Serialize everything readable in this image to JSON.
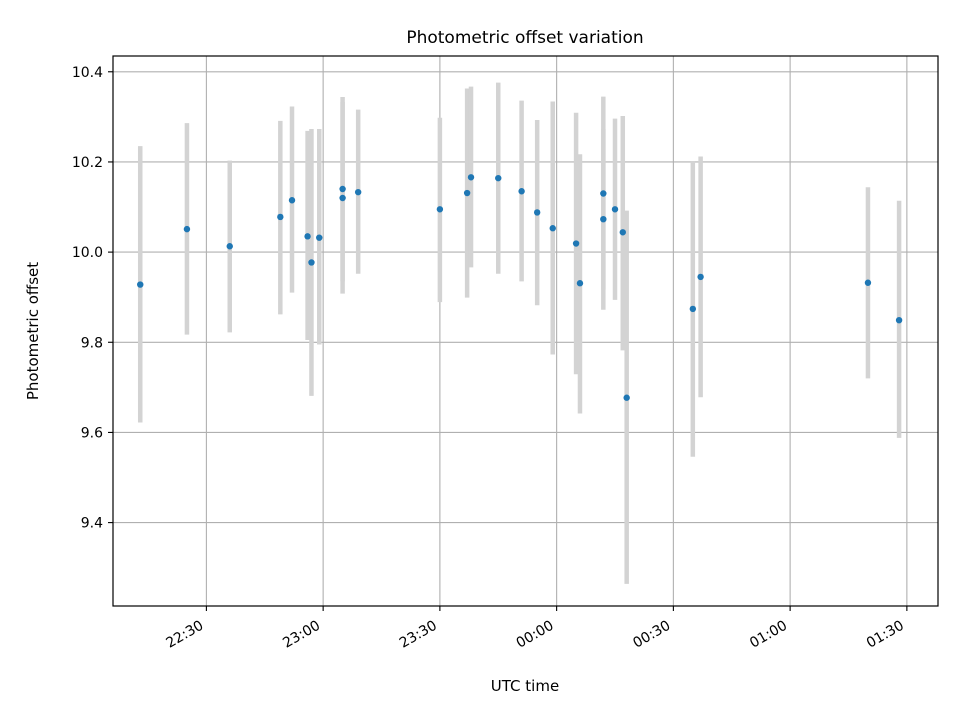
{
  "chart_data": {
    "type": "scatter",
    "title": "Photometric offset variation",
    "xlabel": "UTC time",
    "ylabel": "Photometric offset",
    "x_ticks": [
      {
        "time": "22:30",
        "label": "22:30"
      },
      {
        "time": "23:00",
        "label": "23:00"
      },
      {
        "time": "23:30",
        "label": "23:30"
      },
      {
        "time": "00:00",
        "label": "00:00"
      },
      {
        "time": "00:30",
        "label": "00:30"
      },
      {
        "time": "01:00",
        "label": "01:00"
      },
      {
        "time": "01:30",
        "label": "01:30"
      }
    ],
    "x_range": [
      "22:06",
      "01:38"
    ],
    "y_ticks": [
      {
        "value": 9.4,
        "label": "9.4"
      },
      {
        "value": 9.6,
        "label": "9.6"
      },
      {
        "value": 9.8,
        "label": "9.8"
      },
      {
        "value": 10.0,
        "label": "10.0"
      },
      {
        "value": 10.2,
        "label": "10.2"
      },
      {
        "value": 10.4,
        "label": "10.4"
      }
    ],
    "ylim": [
      9.215,
      10.435
    ],
    "grid": true,
    "marker_color": "#1f77b4",
    "errorbar_color": "#d3d3d3",
    "points": [
      {
        "time": "22:13",
        "y": 9.928,
        "err_low": 9.622,
        "err_high": 10.235
      },
      {
        "time": "22:25",
        "y": 10.051,
        "err_low": 9.817,
        "err_high": 10.286
      },
      {
        "time": "22:36",
        "y": 10.013,
        "err_low": 9.822,
        "err_high": 10.203
      },
      {
        "time": "22:49",
        "y": 10.078,
        "err_low": 9.862,
        "err_high": 10.291
      },
      {
        "time": "22:52",
        "y": 10.115,
        "err_low": 9.91,
        "err_high": 10.323
      },
      {
        "time": "22:56",
        "y": 10.035,
        "err_low": 9.805,
        "err_high": 10.269
      },
      {
        "time": "22:57",
        "y": 9.977,
        "err_low": 9.681,
        "err_high": 10.273
      },
      {
        "time": "22:59",
        "y": 10.032,
        "err_low": 9.795,
        "err_high": 10.273
      },
      {
        "time": "23:05",
        "y": 10.14,
        "err_low": 9.935,
        "err_high": 10.344
      },
      {
        "time": "23:05",
        "y": 10.12,
        "err_low": 9.908,
        "err_high": 10.333
      },
      {
        "time": "23:09",
        "y": 10.133,
        "err_low": 9.952,
        "err_high": 10.316
      },
      {
        "time": "23:30",
        "y": 10.095,
        "err_low": 9.889,
        "err_high": 10.298
      },
      {
        "time": "23:37",
        "y": 10.131,
        "err_low": 9.899,
        "err_high": 10.363
      },
      {
        "time": "23:38",
        "y": 10.166,
        "err_low": 9.966,
        "err_high": 10.367
      },
      {
        "time": "23:45",
        "y": 10.164,
        "err_low": 9.952,
        "err_high": 10.376
      },
      {
        "time": "23:51",
        "y": 10.135,
        "err_low": 9.935,
        "err_high": 10.336
      },
      {
        "time": "23:55",
        "y": 10.088,
        "err_low": 9.882,
        "err_high": 10.293
      },
      {
        "time": "23:59",
        "y": 10.053,
        "err_low": 9.773,
        "err_high": 10.334
      },
      {
        "time": "00:05",
        "y": 10.019,
        "err_low": 9.729,
        "err_high": 10.309
      },
      {
        "time": "00:06",
        "y": 9.931,
        "err_low": 9.642,
        "err_high": 10.217
      },
      {
        "time": "00:12",
        "y": 10.073,
        "err_low": 9.872,
        "err_high": 10.273
      },
      {
        "time": "00:12",
        "y": 10.13,
        "err_low": 9.917,
        "err_high": 10.345
      },
      {
        "time": "00:15",
        "y": 10.095,
        "err_low": 9.894,
        "err_high": 10.296
      },
      {
        "time": "00:17",
        "y": 10.044,
        "err_low": 9.782,
        "err_high": 10.302
      },
      {
        "time": "00:18",
        "y": 9.677,
        "err_low": 9.264,
        "err_high": 10.092
      },
      {
        "time": "00:35",
        "y": 9.874,
        "err_low": 9.546,
        "err_high": 10.202
      },
      {
        "time": "00:37",
        "y": 9.945,
        "err_low": 9.678,
        "err_high": 10.212
      },
      {
        "time": "01:20",
        "y": 9.932,
        "err_low": 9.72,
        "err_high": 10.144
      },
      {
        "time": "01:28",
        "y": 9.849,
        "err_low": 9.588,
        "err_high": 10.114
      }
    ]
  }
}
